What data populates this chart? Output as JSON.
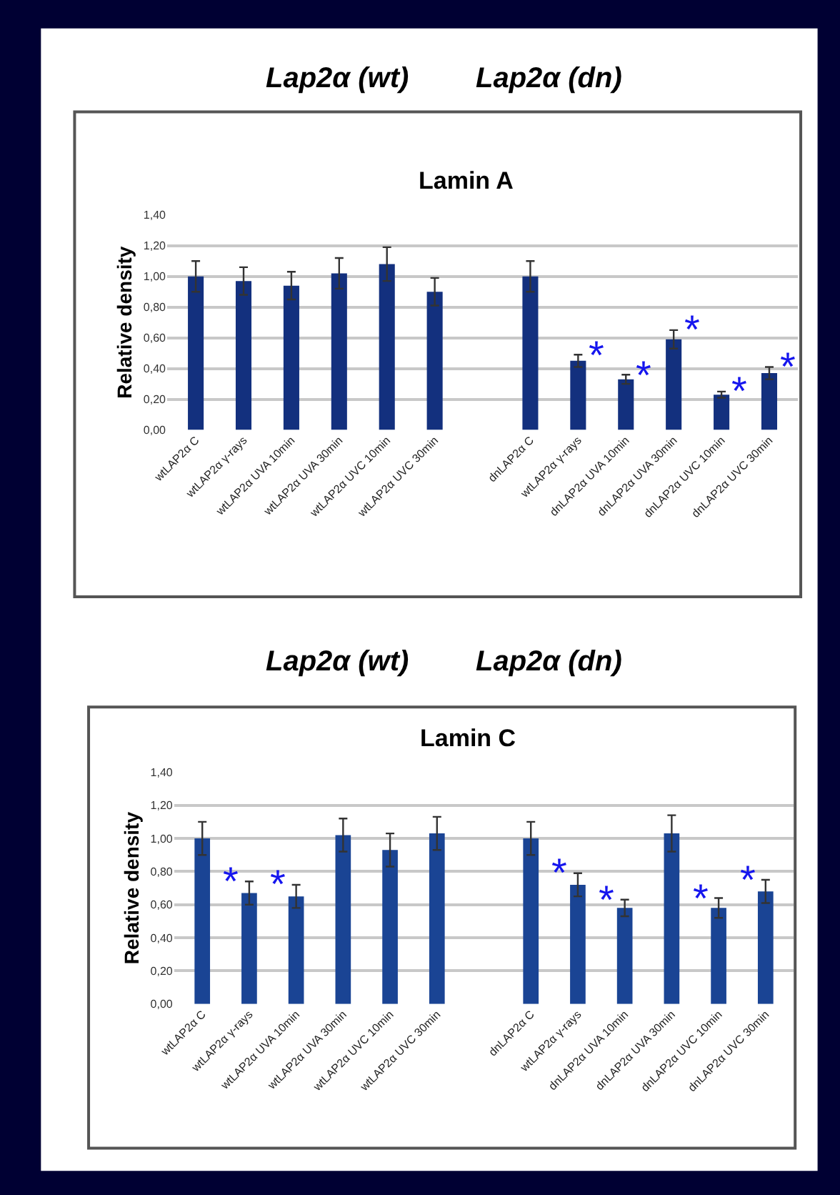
{
  "chart_data": [
    {
      "type": "bar",
      "title": "Lamin A",
      "ylabel": "Relative density",
      "annotations": [
        "Lap2α (wt)",
        "Lap2α (dn)"
      ],
      "categories": [
        "wtLAP2α C",
        "wtLAP2α γ-rays",
        "wtLAP2α UVA 10min",
        "wtLAP2α UVA 30min",
        "wtLAP2α UVC 10min",
        "wtLAP2α UVC 30min",
        null,
        "dnLAP2α C",
        "wtLAP2α γ-rays",
        "dnLAP2α UVA 10min",
        "dnLAP2α UVA 30min",
        "dnLAP2α UVC 10min",
        "dnLAP2α UVC 30min"
      ],
      "series": [
        {
          "color": "#13307e",
          "values": [
            1.0,
            0.97,
            0.94,
            1.02,
            1.08,
            0.9,
            null,
            1.0,
            0.45,
            0.33,
            0.59,
            0.23,
            0.37
          ],
          "errors": [
            0.1,
            0.09,
            0.09,
            0.1,
            0.11,
            0.09,
            null,
            0.1,
            0.04,
            0.03,
            0.06,
            0.02,
            0.04
          ],
          "value_labels": [
            null,
            null,
            null,
            null,
            null,
            null,
            null,
            null,
            "*",
            "*",
            "*",
            "*",
            "*"
          ]
        }
      ],
      "ylim": [
        0,
        1.4
      ],
      "yticks": [
        {
          "value": 0,
          "label": "0,00"
        },
        {
          "value": 0.2,
          "label": "0,20"
        },
        {
          "value": 0.4,
          "label": "0,40"
        },
        {
          "value": 0.6,
          "label": "0,60"
        },
        {
          "value": 0.8,
          "label": "0,80"
        },
        {
          "value": 1.0,
          "label": "1,00"
        },
        {
          "value": 1.2,
          "label": "1,20"
        },
        {
          "value": 1.4,
          "label": "1,40"
        }
      ],
      "grid": "y"
    },
    {
      "type": "bar",
      "title": "Lamin C",
      "ylabel": "Relative density",
      "annotations": [
        "Lap2α (wt)",
        "Lap2α (dn)"
      ],
      "categories": [
        "wtLAP2α C",
        "wtLAP2α γ-rays",
        "wtLAP2α UVA 10min",
        "wtLAP2α UVA 30min",
        "wtLAP2α UVC 10min",
        "wtLAP2α UVC 30min",
        null,
        "dnLAP2α C",
        "wtLAP2α γ-rays",
        "dnLAP2α UVA 10min",
        "dnLAP2α UVA 30min",
        "dnLAP2α UVC 10min",
        "dnLAP2α UVC 30min"
      ],
      "series": [
        {
          "color": "#1a4494",
          "values": [
            1.0,
            0.67,
            0.65,
            1.02,
            0.93,
            1.03,
            null,
            1.0,
            0.72,
            0.58,
            1.03,
            0.58,
            0.68
          ],
          "errors": [
            0.1,
            0.07,
            0.07,
            0.1,
            0.1,
            0.1,
            null,
            0.1,
            0.07,
            0.05,
            0.11,
            0.06,
            0.07
          ],
          "value_labels": [
            null,
            "*",
            "*",
            null,
            null,
            null,
            null,
            null,
            "*",
            "*",
            null,
            "*",
            "*"
          ]
        }
      ],
      "ylim": [
        0,
        1.4
      ],
      "yticks": [
        {
          "value": 0,
          "label": "0,00"
        },
        {
          "value": 0.2,
          "label": "0,20"
        },
        {
          "value": 0.4,
          "label": "0,40"
        },
        {
          "value": 0.6,
          "label": "0,60"
        },
        {
          "value": 0.8,
          "label": "0,80"
        },
        {
          "value": 1.0,
          "label": "1,00"
        },
        {
          "value": 1.2,
          "label": "1,20"
        },
        {
          "value": 1.4,
          "label": "1,40"
        }
      ],
      "grid": "y"
    }
  ]
}
